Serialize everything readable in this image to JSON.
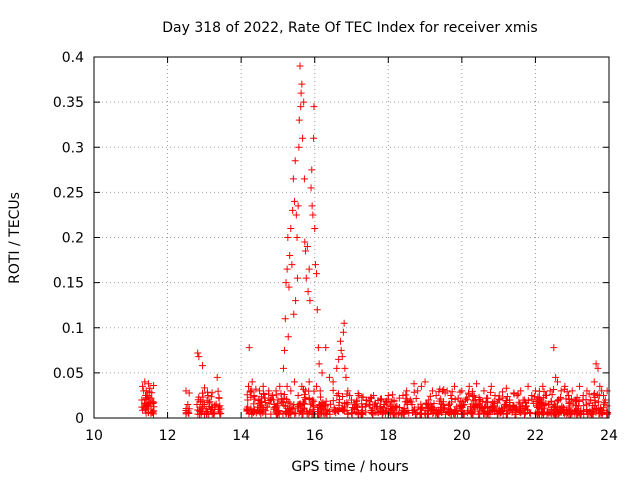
{
  "chart_data": {
    "type": "scatter",
    "title": "Day 318 of 2022, Rate Of TEC Index for receiver xmis",
    "xlabel": "GPS time / hours",
    "ylabel": "ROTI / TECUs",
    "xlim": [
      10,
      24
    ],
    "ylim": [
      0,
      0.4
    ],
    "xticks": [
      10,
      12,
      14,
      16,
      18,
      20,
      22,
      24
    ],
    "yticks": [
      0,
      0.05,
      0.1,
      0.15,
      0.2,
      0.25,
      0.3,
      0.35,
      0.4
    ],
    "grid": true,
    "marker": "plus",
    "colors": {
      "series": "#ff0000",
      "grid": "#a0a0a0",
      "axis": "#000000"
    },
    "series": [
      {
        "name": "ROTI",
        "points": [
          [
            11.3,
            0.02
          ],
          [
            11.32,
            0.035
          ],
          [
            11.35,
            0.012
          ],
          [
            11.38,
            0.04
          ],
          [
            11.4,
            0.025
          ],
          [
            11.42,
            0.03
          ],
          [
            11.45,
            0.015
          ],
          [
            11.48,
            0.038
          ],
          [
            11.5,
            0.02
          ],
          [
            11.52,
            0.033
          ],
          [
            11.55,
            0.01
          ],
          [
            11.57,
            0.028
          ],
          [
            11.6,
            0.018
          ],
          [
            11.62,
            0.036
          ],
          [
            11.35,
            0.03
          ],
          [
            11.45,
            0.025
          ],
          [
            11.55,
            0.022
          ],
          [
            11.62,
            0.008
          ],
          [
            12.5,
            0.03
          ],
          [
            12.55,
            0.015
          ],
          [
            12.58,
            0.005
          ],
          [
            12.8,
            0.015
          ],
          [
            12.82,
            0.072
          ],
          [
            12.85,
            0.068
          ],
          [
            12.88,
            0.012
          ],
          [
            12.9,
            0.02
          ],
          [
            12.95,
            0.058
          ],
          [
            13.0,
            0.015
          ],
          [
            13.05,
            0.01
          ],
          [
            13.1,
            0.025
          ],
          [
            13.15,
            0.018
          ],
          [
            13.2,
            0.012
          ],
          [
            13.35,
            0.045
          ],
          [
            13.4,
            0.012
          ],
          [
            13.45,
            0.01
          ],
          [
            14.15,
            0.01
          ],
          [
            14.18,
            0.02
          ],
          [
            14.2,
            0.035
          ],
          [
            14.22,
            0.078
          ],
          [
            14.25,
            0.03
          ],
          [
            14.3,
            0.04
          ],
          [
            14.35,
            0.025
          ],
          [
            14.4,
            0.032
          ],
          [
            14.45,
            0.012
          ],
          [
            14.5,
            0.03
          ],
          [
            14.55,
            0.018
          ],
          [
            14.6,
            0.035
          ],
          [
            14.65,
            0.022
          ],
          [
            14.7,
            0.012
          ],
          [
            14.75,
            0.03
          ],
          [
            14.8,
            0.02
          ],
          [
            14.85,
            0.025
          ],
          [
            14.9,
            0.015
          ],
          [
            14.95,
            0.03
          ],
          [
            15.0,
            0.02
          ],
          [
            15.05,
            0.035
          ],
          [
            15.1,
            0.018
          ],
          [
            15.15,
            0.055
          ],
          [
            15.18,
            0.075
          ],
          [
            15.2,
            0.11
          ],
          [
            15.22,
            0.15
          ],
          [
            15.25,
            0.165
          ],
          [
            15.27,
            0.2
          ],
          [
            15.28,
            0.09
          ],
          [
            15.3,
            0.145
          ],
          [
            15.32,
            0.18
          ],
          [
            15.35,
            0.21
          ],
          [
            15.38,
            0.17
          ],
          [
            15.4,
            0.23
          ],
          [
            15.42,
            0.265
          ],
          [
            15.43,
            0.115
          ],
          [
            15.45,
            0.24
          ],
          [
            15.47,
            0.285
          ],
          [
            15.48,
            0.13
          ],
          [
            15.5,
            0.225
          ],
          [
            15.52,
            0.2
          ],
          [
            15.53,
            0.155
          ],
          [
            15.55,
            0.235
          ],
          [
            15.57,
            0.3
          ],
          [
            15.58,
            0.33
          ],
          [
            15.6,
            0.39
          ],
          [
            15.62,
            0.345
          ],
          [
            15.63,
            0.36
          ],
          [
            15.65,
            0.37
          ],
          [
            15.67,
            0.31
          ],
          [
            15.7,
            0.35
          ],
          [
            15.72,
            0.265
          ],
          [
            15.73,
            0.195
          ],
          [
            15.75,
            0.185
          ],
          [
            15.77,
            0.155
          ],
          [
            15.8,
            0.19
          ],
          [
            15.82,
            0.14
          ],
          [
            15.85,
            0.165
          ],
          [
            15.87,
            0.13
          ],
          [
            15.9,
            0.255
          ],
          [
            15.92,
            0.275
          ],
          [
            15.93,
            0.235
          ],
          [
            15.95,
            0.225
          ],
          [
            15.97,
            0.31
          ],
          [
            15.98,
            0.345
          ],
          [
            16.0,
            0.21
          ],
          [
            16.02,
            0.17
          ],
          [
            16.05,
            0.16
          ],
          [
            16.07,
            0.12
          ],
          [
            16.1,
            0.078
          ],
          [
            16.12,
            0.06
          ],
          [
            15.25,
            0.035
          ],
          [
            15.35,
            0.03
          ],
          [
            15.45,
            0.04
          ],
          [
            15.55,
            0.025
          ],
          [
            15.65,
            0.035
          ],
          [
            15.75,
            0.03
          ],
          [
            15.85,
            0.04
          ],
          [
            15.95,
            0.02
          ],
          [
            16.05,
            0.035
          ],
          [
            16.15,
            0.03
          ],
          [
            16.2,
            0.05
          ],
          [
            16.3,
            0.078
          ],
          [
            16.4,
            0.045
          ],
          [
            16.5,
            0.04
          ],
          [
            16.6,
            0.055
          ],
          [
            16.65,
            0.065
          ],
          [
            16.7,
            0.085
          ],
          [
            16.72,
            0.075
          ],
          [
            16.75,
            0.068
          ],
          [
            16.78,
            0.095
          ],
          [
            16.8,
            0.105
          ],
          [
            16.82,
            0.055
          ],
          [
            16.85,
            0.045
          ],
          [
            16.9,
            0.03
          ],
          [
            16.95,
            0.025
          ],
          [
            17.0,
            0.02
          ],
          [
            17.1,
            0.015
          ],
          [
            17.2,
            0.025
          ],
          [
            17.3,
            0.012
          ],
          [
            17.4,
            0.02
          ],
          [
            17.5,
            0.018
          ],
          [
            17.6,
            0.025
          ],
          [
            17.7,
            0.012
          ],
          [
            17.8,
            0.02
          ],
          [
            17.9,
            0.015
          ],
          [
            18.0,
            0.025
          ],
          [
            18.1,
            0.018
          ],
          [
            18.2,
            0.012
          ],
          [
            18.3,
            0.022
          ],
          [
            18.4,
            0.025
          ],
          [
            18.5,
            0.03
          ],
          [
            18.6,
            0.02
          ],
          [
            18.7,
            0.038
          ],
          [
            18.8,
            0.03
          ],
          [
            18.9,
            0.035
          ],
          [
            19.0,
            0.04
          ],
          [
            19.1,
            0.02
          ],
          [
            19.2,
            0.03
          ],
          [
            19.3,
            0.025
          ],
          [
            19.4,
            0.032
          ],
          [
            19.5,
            0.018
          ],
          [
            19.6,
            0.03
          ],
          [
            19.7,
            0.025
          ],
          [
            19.8,
            0.035
          ],
          [
            19.9,
            0.022
          ],
          [
            20.0,
            0.03
          ],
          [
            20.1,
            0.02
          ],
          [
            20.2,
            0.035
          ],
          [
            20.3,
            0.025
          ],
          [
            20.4,
            0.038
          ],
          [
            20.5,
            0.02
          ],
          [
            20.6,
            0.03
          ],
          [
            20.7,
            0.022
          ],
          [
            20.8,
            0.035
          ],
          [
            20.9,
            0.025
          ],
          [
            21.0,
            0.02
          ],
          [
            21.2,
            0.015
          ],
          [
            21.3,
            0.02
          ],
          [
            21.4,
            0.012
          ],
          [
            21.5,
            0.025
          ],
          [
            21.6,
            0.03
          ],
          [
            21.7,
            0.02
          ],
          [
            21.8,
            0.035
          ],
          [
            21.9,
            0.025
          ],
          [
            22.0,
            0.03
          ],
          [
            22.1,
            0.02
          ],
          [
            22.2,
            0.035
          ],
          [
            22.3,
            0.025
          ],
          [
            22.4,
            0.03
          ],
          [
            22.5,
            0.078
          ],
          [
            22.55,
            0.045
          ],
          [
            22.6,
            0.04
          ],
          [
            22.7,
            0.03
          ],
          [
            22.8,
            0.035
          ],
          [
            22.9,
            0.025
          ],
          [
            23.0,
            0.03
          ],
          [
            23.1,
            0.02
          ],
          [
            23.2,
            0.035
          ],
          [
            23.3,
            0.025
          ],
          [
            23.4,
            0.03
          ],
          [
            23.5,
            0.02
          ],
          [
            23.6,
            0.04
          ],
          [
            23.65,
            0.06
          ],
          [
            23.7,
            0.055
          ],
          [
            23.75,
            0.035
          ],
          [
            23.8,
            0.03
          ],
          [
            23.85,
            0.025
          ],
          [
            23.9,
            0.02
          ],
          [
            23.95,
            0.03
          ]
        ]
      }
    ]
  }
}
